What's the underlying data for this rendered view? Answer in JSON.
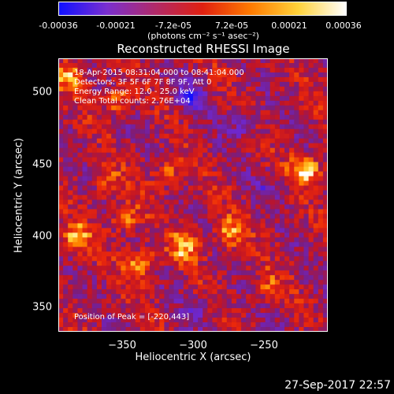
{
  "colorbar": {
    "ticks": [
      "-0.00036",
      "-0.00021",
      "-7.2e-05",
      "7.2e-05",
      "0.00021",
      "0.00036"
    ],
    "units": "(photons cm⁻² s⁻¹ asec⁻²)",
    "stops": [
      "#1010ff",
      "#7a2fcf",
      "#b02a6a",
      "#e02010",
      "#ff7a00",
      "#ffd23a",
      "#ffffff"
    ]
  },
  "annotations": {
    "time": "18-Apr-2015 08:31:04.000 to 08:41:04.000",
    "detectors": "Detectors: 3F 5F 6F 7F 8F 9F, Att 0",
    "energy": "Energy Range: 12.0 - 25.0 keV",
    "clean": "Clean     Total counts: 2.76E+04",
    "peak": "Position of Peak = [-220,443]"
  },
  "timestamp": "27-Sep-2017 22:57",
  "chart_data": {
    "type": "heatmap",
    "title": "Reconstructed RHESSI Image",
    "xlabel": "Heliocentric X (arcsec)",
    "ylabel": "Heliocentric Y (arcsec)",
    "xlim": [
      -395,
      -205
    ],
    "ylim": [
      328,
      523
    ],
    "xticks": [
      -350,
      -300,
      -250
    ],
    "xtick_labels": [
      "−350",
      "−300",
      "−250"
    ],
    "yticks": [
      350,
      400,
      450,
      500
    ],
    "yticks_labels": [
      "350",
      "400",
      "450",
      "500"
    ],
    "zlim": [
      -0.00036,
      0.00036
    ],
    "grid": false,
    "peak": [
      -220,
      443
    ],
    "bright_regions": [
      {
        "x": -220,
        "y": 443,
        "value": 0.00036
      },
      {
        "x": -337,
        "y": 375,
        "value": 0.00028
      },
      {
        "x": -382,
        "y": 393,
        "value": 0.00027
      },
      {
        "x": -305,
        "y": 388,
        "value": 0.00026
      },
      {
        "x": -274,
        "y": 398,
        "value": 0.00025
      },
      {
        "x": -348,
        "y": 408,
        "value": 0.00022
      },
      {
        "x": -386,
        "y": 510,
        "value": 0.00022
      },
      {
        "x": -353,
        "y": 492,
        "value": 0.0002
      },
      {
        "x": -318,
        "y": 440,
        "value": 0.00018
      },
      {
        "x": -361,
        "y": 433,
        "value": 0.00017
      },
      {
        "x": -247,
        "y": 358,
        "value": 0.00015
      }
    ],
    "dim_regions": [
      {
        "x": -300,
        "y": 495,
        "value": -0.00022
      },
      {
        "x": -265,
        "y": 475,
        "value": -0.00016
      },
      {
        "x": -248,
        "y": 430,
        "value": -0.00012
      },
      {
        "x": -300,
        "y": 340,
        "value": -0.0001
      }
    ]
  }
}
